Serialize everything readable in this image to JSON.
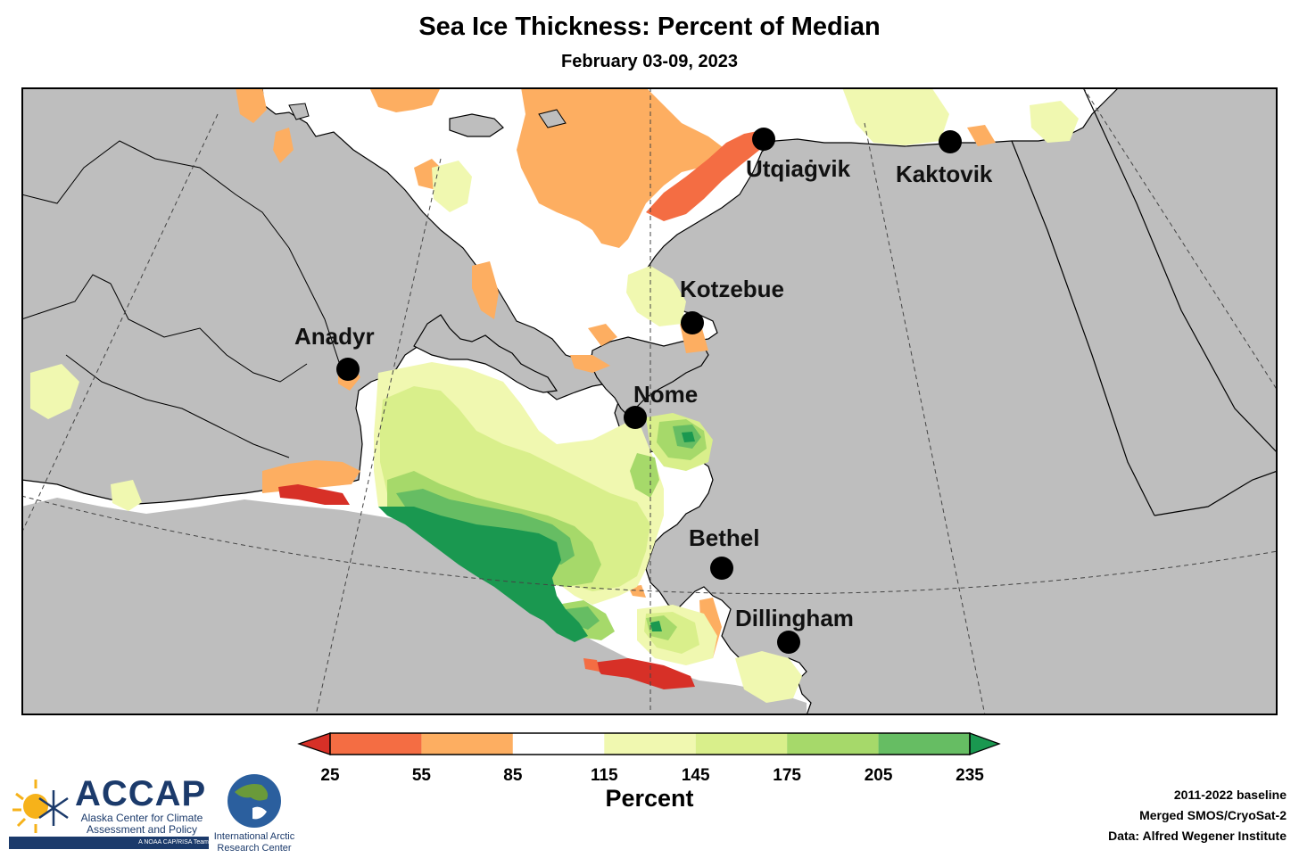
{
  "title": "Sea Ice Thickness: Percent of Median",
  "subtitle": "February 03-09, 2023",
  "cities": [
    {
      "name": "Utqiagvik",
      "label": "Utqiaġvik"
    },
    {
      "name": "Kaktovik",
      "label": "Kaktovik"
    },
    {
      "name": "Kotzebue",
      "label": "Kotzebue"
    },
    {
      "name": "Anadyr",
      "label": "Anadyr"
    },
    {
      "name": "Nome",
      "label": "Nome"
    },
    {
      "name": "Bethel",
      "label": "Bethel"
    },
    {
      "name": "Dillingham",
      "label": "Dillingham"
    }
  ],
  "legend": {
    "title": "Percent",
    "ticks": [
      "25",
      "55",
      "85",
      "115",
      "145",
      "175",
      "205",
      "235"
    ],
    "bins": [
      {
        "range": "25-55",
        "color": "#f46d43"
      },
      {
        "range": "55-85",
        "color": "#fdae61"
      },
      {
        "range": "85-115",
        "color": "#ffffff"
      },
      {
        "range": "115-145",
        "color": "#f0f8b0"
      },
      {
        "range": "145-175",
        "color": "#d9ef8b"
      },
      {
        "range": "175-205",
        "color": "#a6d96a"
      },
      {
        "range": "205-235",
        "color": "#66bd63"
      }
    ],
    "under_color": "#d73027",
    "over_color": "#1a9850"
  },
  "colors": {
    "land": "#bebebe",
    "strong_red": "#d73027",
    "dark_green": "#1a9850"
  },
  "logos": {
    "accap": {
      "name": "ACCAP",
      "line1": "Alaska Center for Climate",
      "line2": "Assessment and Policy",
      "tag": "A NOAA CAP/RISA Team"
    },
    "iarc": {
      "line1": "International Arctic",
      "line2": "Research Center"
    }
  },
  "credits": {
    "baseline": "2011-2022 baseline",
    "product": "Merged SMOS/CryoSat-2",
    "source": "Data: Alfred Wegener Institute"
  }
}
